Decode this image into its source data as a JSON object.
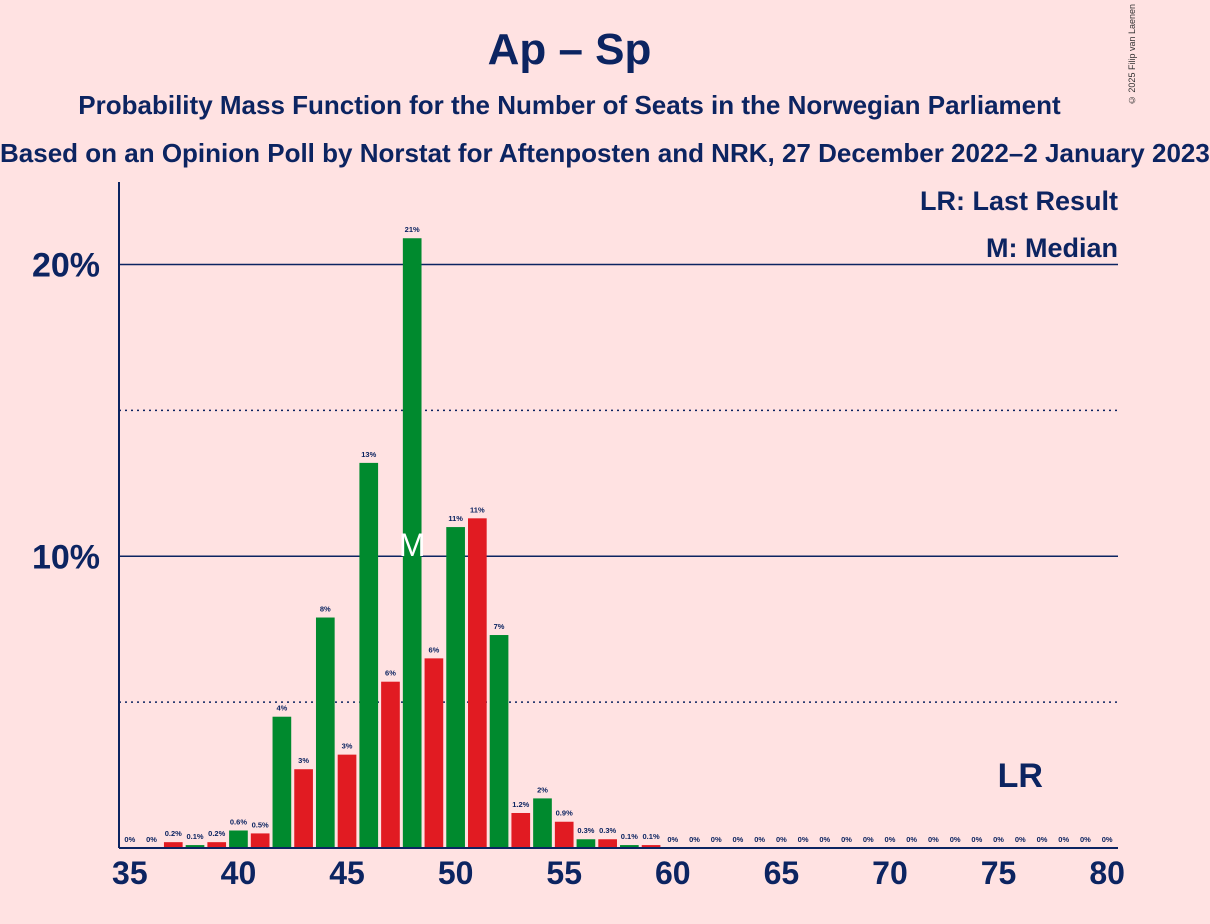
{
  "header": {
    "title": "Ap – Sp",
    "subtitle": "Probability Mass Function for the Number of Seats in the Norwegian Parliament",
    "source": "Based on an Opinion Poll by Norstat for Aftenposten and NRK, 27 December 2022–2 January 2023",
    "copyright": "© 2025 Filip van Laenen"
  },
  "chart_data": {
    "type": "bar",
    "x": [
      35,
      36,
      37,
      38,
      39,
      40,
      41,
      42,
      43,
      44,
      45,
      46,
      47,
      48,
      49,
      50,
      51,
      52,
      53,
      54,
      55,
      56,
      57,
      58,
      59,
      60,
      61,
      62,
      63,
      64,
      65,
      66,
      67,
      68,
      69,
      70,
      71,
      72,
      73,
      74,
      75,
      76,
      77,
      78,
      79,
      80
    ],
    "values": [
      0,
      0,
      0.2,
      0.1,
      0.2,
      0.6,
      0.5,
      4.5,
      2.7,
      7.9,
      3.2,
      13.2,
      5.7,
      20.9,
      6.5,
      11.0,
      11.3,
      7.3,
      1.2,
      1.7,
      0.9,
      0.3,
      0.3,
      0.1,
      0.1,
      0,
      0,
      0,
      0,
      0,
      0,
      0,
      0,
      0,
      0,
      0,
      0,
      0,
      0,
      0,
      0,
      0,
      0,
      0,
      0,
      0
    ],
    "value_labels": [
      "0%",
      "0%",
      "0.2%",
      "0.1%",
      "0.2%",
      "0.6%",
      "0.5%",
      "4%",
      "3%",
      "8%",
      "3%",
      "13%",
      "6%",
      "21%",
      "6%",
      "11%",
      "11%",
      "7%",
      "1.2%",
      "2%",
      "0.9%",
      "0.3%",
      "0.3%",
      "0.1%",
      "0.1%",
      "0%",
      "0%",
      "0%",
      "0%",
      "0%",
      "0%",
      "0%",
      "0%",
      "0%",
      "0%",
      "0%",
      "0%",
      "0%",
      "0%",
      "0%",
      "0%",
      "0%",
      "0%",
      "0%",
      "0%",
      "0%"
    ],
    "xticks": [
      35,
      40,
      45,
      50,
      55,
      60,
      65,
      70,
      75,
      80
    ],
    "yticks": [
      {
        "value": 10,
        "label": "10%"
      },
      {
        "value": 20,
        "label": "20%"
      }
    ],
    "dotted_gridlines": [
      5,
      15
    ],
    "ylim": [
      0,
      23
    ],
    "xlim": [
      34.5,
      80.5
    ],
    "colors": {
      "odd_seat": "#E11B22",
      "even_seat": "#008A2E",
      "axis": "#0C2461"
    },
    "median": {
      "seats": 48,
      "marker": "M"
    },
    "last_result": {
      "seats": 76,
      "marker": "LR"
    },
    "legend": {
      "lr": "LR: Last Result",
      "m": "M: Median",
      "position": "top-right"
    }
  }
}
